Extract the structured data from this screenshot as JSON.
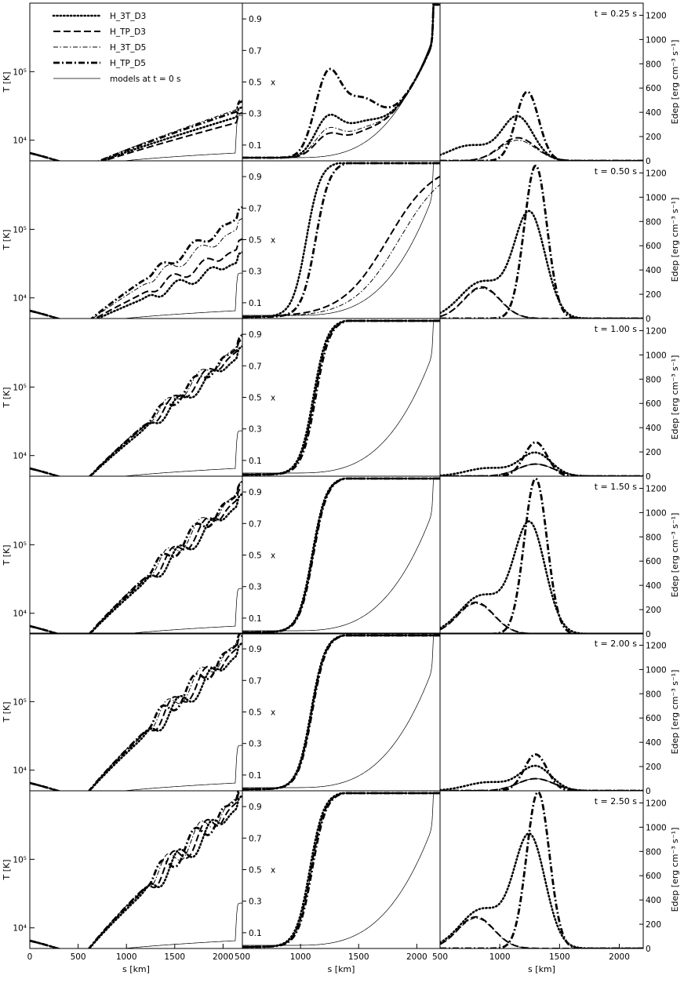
{
  "figure": {
    "columns": [
      {
        "ylabel": "T [K]",
        "ylabel_parts": [
          "T",
          "[K]"
        ],
        "xlabel": "s [km]",
        "x_ticks": [
          "0",
          "500",
          "1000",
          "1500",
          "2000"
        ],
        "y_ticks": [
          "10⁴",
          "10⁵"
        ]
      },
      {
        "ylabel": "x",
        "xlabel": "s [km]",
        "x_ticks": [
          "500",
          "1000",
          "1500",
          "2000"
        ],
        "y_ticks": [
          "0.1",
          "0.3",
          "0.5",
          "0.7",
          "0.9"
        ]
      },
      {
        "ylabel": "Edep [erg cm⁻³ s⁻¹]",
        "xlabel": "s [km]",
        "x_ticks": [
          "500",
          "1000",
          "1500",
          "2000"
        ],
        "y_ticks": [
          "0",
          "200",
          "400",
          "600",
          "800",
          "1000",
          "1200"
        ]
      }
    ],
    "legend": [
      {
        "label": "H_3T_D3",
        "style": "dotted"
      },
      {
        "label": "H_TP_D3",
        "style": "dashed"
      },
      {
        "label": "H_3T_D5",
        "style": "dash-dot"
      },
      {
        "label": "H_TP_D5",
        "style": "dash-dot thick"
      },
      {
        "label": "models at t = 0 s",
        "style": "solid thin"
      }
    ],
    "times": [
      "t = 0.25 s",
      "t = 0.50 s",
      "t = 1.00 s",
      "t = 1.50 s",
      "t = 2.00 s",
      "t = 2.50 s"
    ]
  },
  "chart_data": [
    {
      "type": "line",
      "title": "",
      "xlabel": "s [km]",
      "ylabel": "T [K]",
      "xlim": [
        0,
        2200
      ],
      "ylim": [
        5000,
        1000000
      ],
      "yscale": "log",
      "series_names": [
        "H_3T_D3",
        "H_TP_D3",
        "H_3T_D5",
        "H_TP_D5",
        "models at t = 0 s"
      ],
      "rows": [
        {
          "time": "t = 0.25 s",
          "final_values": [
            23000,
            19000,
            30000,
            28000,
            23000
          ]
        },
        {
          "time": "t = 0.50 s",
          "final_values": [
            35000,
            55000,
            110000,
            160000,
            23000
          ]
        },
        {
          "time": "t = 1.00 s",
          "final_values": [
            300000,
            380000,
            450000,
            420000,
            23000
          ]
        },
        {
          "time": "t = 1.50 s",
          "final_values": [
            420000,
            520000,
            650000,
            620000,
            23000
          ]
        },
        {
          "time": "t = 2.00 s",
          "final_values": [
            550000,
            700000,
            850000,
            800000,
            23000
          ]
        },
        {
          "time": "t = 2.50 s",
          "final_values": [
            650000,
            800000,
            950000,
            900000,
            23000
          ]
        }
      ]
    },
    {
      "type": "line",
      "title": "",
      "xlabel": "s [km]",
      "ylabel": "x",
      "xlim": [
        500,
        2200
      ],
      "ylim": [
        0,
        1
      ],
      "series_names": [
        "H_3T_D3",
        "H_TP_D3",
        "H_3T_D5",
        "H_TP_D5",
        "models at t = 0 s"
      ],
      "rows": [
        {
          "time": "t = 0.25 s",
          "peak_x": [
            0.22,
            0.12,
            0.15,
            0.47
          ]
        },
        {
          "time": "t = 0.50 s",
          "front_s": [
            1050,
            1750,
            1850,
            1130
          ]
        },
        {
          "time": "t = 1.00 s",
          "front_s": [
            1110,
            1120,
            1120,
            1130
          ]
        },
        {
          "time": "t = 1.50 s",
          "front_s": [
            1100,
            1105,
            1110,
            1110
          ]
        },
        {
          "time": "t = 2.00 s",
          "front_s": [
            1090,
            1095,
            1100,
            1100
          ]
        },
        {
          "time": "t = 2.50 s",
          "front_s": [
            1080,
            1090,
            1095,
            1100
          ]
        }
      ]
    },
    {
      "type": "line",
      "title": "",
      "xlabel": "s [km]",
      "ylabel": "Edep [erg cm⁻³ s⁻¹]",
      "xlim": [
        500,
        2200
      ],
      "ylim": [
        0,
        1300
      ],
      "series_names": [
        "H_3T_D3",
        "H_TP_D3",
        "H_3T_D5",
        "H_TP_D5"
      ],
      "rows": [
        {
          "time": "t = 0.25 s",
          "peaks": [
            {
              "s": 1150,
              "edep": 360
            },
            {
              "s": 1150,
              "edep": 190
            },
            {
              "s": 1150,
              "edep": 170
            },
            {
              "s": 1230,
              "edep": 570
            }
          ]
        },
        {
          "time": "t = 0.50 s",
          "peaks": [
            {
              "s": 1250,
              "edep": 860
            },
            {
              "s": 850,
              "edep": 260
            },
            {
              "s": 850,
              "edep": 250
            },
            {
              "s": 1300,
              "edep": 1260
            }
          ]
        },
        {
          "time": "t = 1.00 s",
          "peaks": [
            {
              "s": 1300,
              "edep": 190
            },
            {
              "s": 1300,
              "edep": 100
            },
            {
              "s": 1300,
              "edep": 100
            },
            {
              "s": 1300,
              "edep": 280
            }
          ]
        },
        {
          "time": "t = 1.50 s",
          "peaks": [
            {
              "s": 1250,
              "edep": 900
            },
            {
              "s": 800,
              "edep": 260
            },
            {
              "s": 800,
              "edep": 250
            },
            {
              "s": 1300,
              "edep": 1280
            }
          ]
        },
        {
          "time": "t = 2.00 s",
          "peaks": [
            {
              "s": 1300,
              "edep": 200
            },
            {
              "s": 1300,
              "edep": 100
            },
            {
              "s": 1300,
              "edep": 100
            },
            {
              "s": 1300,
              "edep": 300
            }
          ]
        },
        {
          "time": "t = 2.50 s",
          "peaks": [
            {
              "s": 1250,
              "edep": 920
            },
            {
              "s": 800,
              "edep": 260
            },
            {
              "s": 800,
              "edep": 250
            },
            {
              "s": 1320,
              "edep": 1290
            }
          ]
        }
      ]
    }
  ]
}
